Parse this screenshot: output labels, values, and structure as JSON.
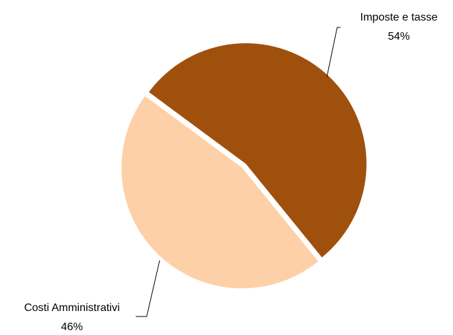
{
  "chart_data": {
    "type": "pie",
    "categories": [
      "Imposte e tasse",
      "Costi Amministrativi"
    ],
    "values": [
      54,
      46
    ],
    "value_labels": [
      "54%",
      "46%"
    ],
    "colors": [
      "#a0500d",
      "#fdd0a8"
    ]
  }
}
